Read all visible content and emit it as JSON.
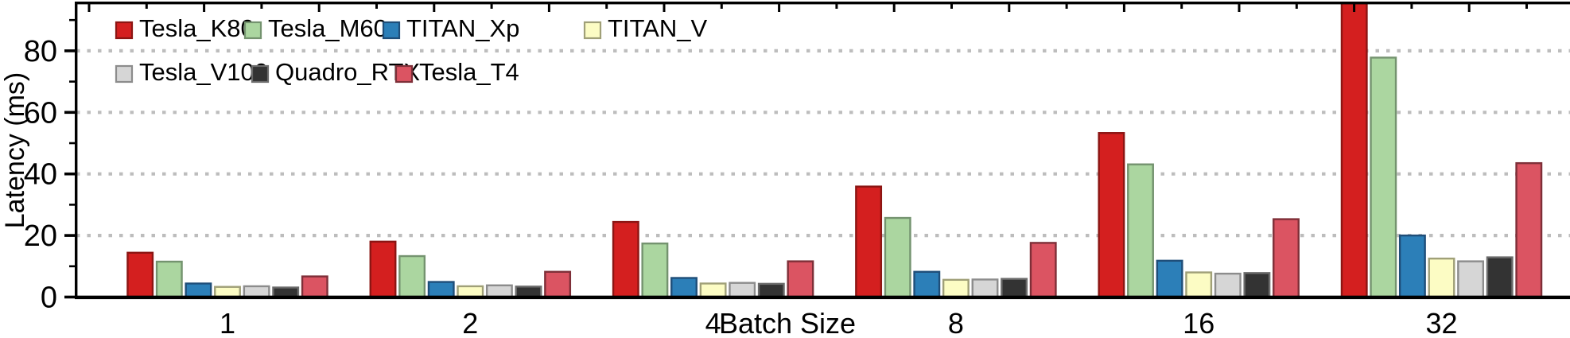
{
  "chart_data": {
    "type": "bar",
    "title": "",
    "xlabel": "Batch Size",
    "ylabel": "Latency (ms)",
    "categories": [
      "1",
      "2",
      "4",
      "8",
      "16",
      "32"
    ],
    "yticks": [
      0,
      20,
      40,
      60,
      80
    ],
    "yminorticks": [
      10,
      30,
      50,
      70,
      90
    ],
    "ylim": [
      0,
      95.5
    ],
    "grid": "horizontal dotted gray lines at major y ticks",
    "legend_position": "top-left inside plot, two rows",
    "legend_rows": [
      [
        "Tesla_K80",
        "Tesla_M60",
        "TITAN_Xp",
        "TITAN_V"
      ],
      [
        "Tesla_V100",
        "Quadro_RTX",
        "Tesla_T4"
      ]
    ],
    "series": [
      {
        "name": "Tesla_K80",
        "fill": "#d41f1f",
        "edge": "#8c1513",
        "values": [
          14.4,
          18.0,
          24.4,
          35.9,
          53.3,
          96.0
        ]
      },
      {
        "name": "Tesla_M60",
        "fill": "#abd6a0",
        "edge": "#74936f",
        "values": [
          11.5,
          13.3,
          17.4,
          25.7,
          43.1,
          77.8
        ]
      },
      {
        "name": "TITAN_Xp",
        "fill": "#2c7fb8",
        "edge": "#1f4e79",
        "values": [
          4.4,
          4.9,
          6.2,
          8.2,
          11.8,
          20.0
        ]
      },
      {
        "name": "TITAN_V",
        "fill": "#fcfcc4",
        "edge": "#a0a078",
        "values": [
          3.3,
          3.5,
          4.4,
          5.6,
          8.0,
          12.5
        ]
      },
      {
        "name": "Tesla_V100",
        "fill": "#d6d6d6",
        "edge": "#8c8c8c",
        "values": [
          3.5,
          3.8,
          4.6,
          5.7,
          7.6,
          11.6
        ]
      },
      {
        "name": "Quadro_RTX",
        "fill": "#333333",
        "edge": "#6b6b6b",
        "values": [
          3.1,
          3.4,
          4.3,
          5.9,
          7.8,
          12.9
        ]
      },
      {
        "name": "Tesla_T4",
        "fill": "#db5462",
        "edge": "#7e2f38",
        "values": [
          6.7,
          8.2,
          11.6,
          17.6,
          25.3,
          43.5
        ]
      }
    ],
    "notes": "Tesla_K80 bar at batch size 32 exceeds the visible axis range and is clipped at the top spine.",
    "colors": {
      "axis": "#000000",
      "gridline": "#bdbdbd",
      "background": "#ffffff"
    }
  }
}
